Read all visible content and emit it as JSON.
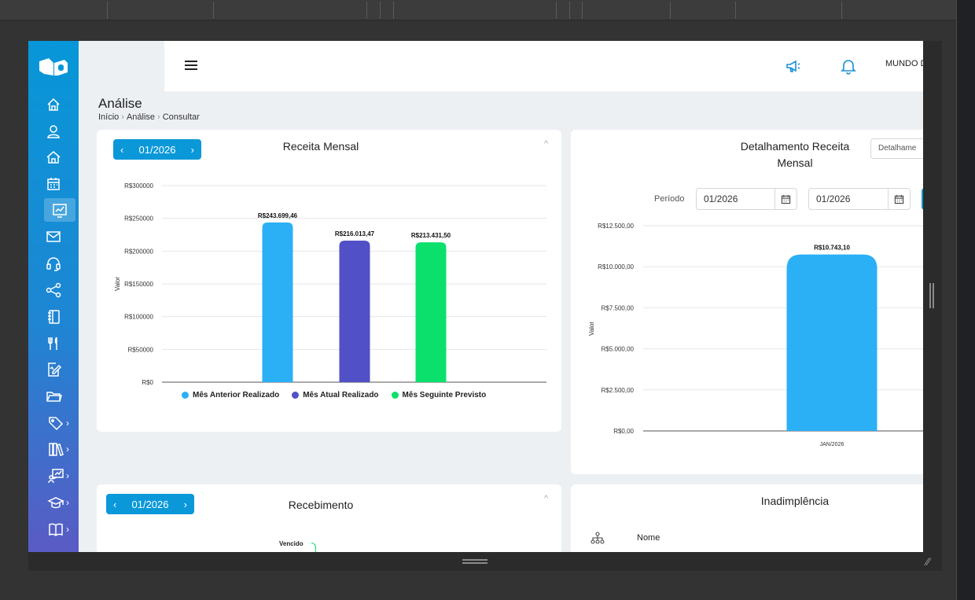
{
  "sidebar": {
    "items": [
      {
        "icon": "home-icon"
      },
      {
        "icon": "user-icon"
      },
      {
        "icon": "house-icon"
      },
      {
        "icon": "calendar-icon"
      },
      {
        "icon": "chart-icon",
        "active": true
      },
      {
        "icon": "mail-icon"
      },
      {
        "icon": "headset-icon"
      },
      {
        "icon": "share-icon"
      },
      {
        "icon": "notebook-icon"
      },
      {
        "icon": "restaurant-icon"
      },
      {
        "icon": "edit-document-icon"
      },
      {
        "icon": "folder-icon"
      },
      {
        "icon": "tag-icon",
        "chevron": "›"
      },
      {
        "icon": "library-icon",
        "chevron": "›"
      },
      {
        "icon": "presentation-icon",
        "chevron": "›"
      },
      {
        "icon": "graduation-cap-icon",
        "chevron": "›"
      },
      {
        "icon": "book-icon",
        "chevron": "›"
      }
    ]
  },
  "header": {
    "user_name": "MUNDO D"
  },
  "page": {
    "title": "Análise",
    "breadcrumb": [
      "Início",
      "Análise",
      "Consultar"
    ]
  },
  "receita_mensal": {
    "title": "Receita Mensal",
    "period": "01/2026",
    "prev": "‹",
    "next": "›",
    "collapse": "^"
  },
  "detalhamento": {
    "title_line1": "Detalhamento Receita",
    "title_line2": "Mensal",
    "select_value": "Detalhame",
    "period_label": "Período",
    "date_from": "01/2026",
    "date_to": "01/2026"
  },
  "recebimento": {
    "title": "Recebimento",
    "period": "01/2026",
    "prev": "‹",
    "next": "›",
    "collapse": "^",
    "first_label": "Vencido"
  },
  "inadimplencia": {
    "title": "Inadimplência",
    "column_nome": "Nome"
  },
  "chart_data": [
    {
      "type": "bar",
      "ylabel": "Valor",
      "ylim": [
        0,
        300000
      ],
      "yticks": [
        "R$0",
        "R$50000",
        "R$100000",
        "R$150000",
        "R$200000",
        "R$250000",
        "R$300000"
      ],
      "grid": true,
      "legend_position": "bottom",
      "series": [
        {
          "name": "Mês Anterior Realizado",
          "value": 243699.46,
          "label": "R$243.699,46",
          "color": "#2bb0f5"
        },
        {
          "name": "Mês Atual Realizado",
          "value": 216013.47,
          "label": "R$216.013,47",
          "color": "#5150c6"
        },
        {
          "name": "Mês Seguinte Previsto",
          "value": 213431.5,
          "label": "R$213.431,50",
          "color": "#0ce06c"
        }
      ]
    },
    {
      "type": "bar",
      "ylabel": "Valor",
      "ylim": [
        0,
        12500
      ],
      "yticks": [
        "R$0,00",
        "R$2.500,00",
        "R$5.000,00",
        "R$7.500,00",
        "R$10.000,00",
        "R$12.500,00"
      ],
      "grid": true,
      "categories": [
        "JAN/2026"
      ],
      "values": [
        10743.1
      ],
      "labels": [
        "R$10.743,10"
      ],
      "color": "#2bb0f5"
    }
  ]
}
